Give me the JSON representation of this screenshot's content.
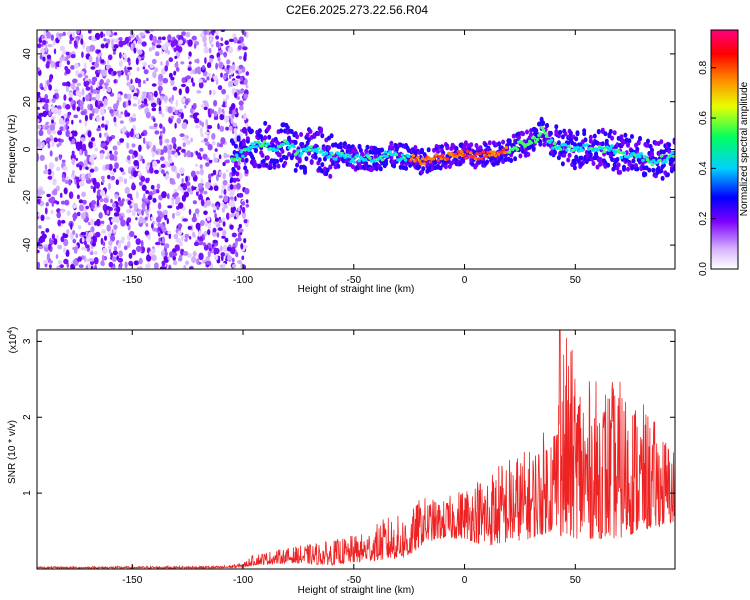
{
  "title": "C2E6.2025.273.22.56.R04",
  "chart_data": [
    {
      "type": "heatmap",
      "id": "spectrogram",
      "xlabel": "Height of straight line (km)",
      "ylabel": "Frequency (Hz)",
      "xlim": [
        -193,
        95
      ],
      "ylim": [
        -50,
        50
      ],
      "xticks": [
        -150,
        -100,
        -50,
        0,
        50
      ],
      "yticks": [
        -40,
        -20,
        0,
        20,
        40
      ],
      "noise_region_x": [
        -193,
        -102
      ],
      "ridge": {
        "x": [
          -105,
          -100,
          -95,
          -90,
          -85,
          -80,
          -75,
          -70,
          -65,
          -60,
          -55,
          -50,
          -45,
          -40,
          -35,
          -30,
          -25,
          -20,
          -15,
          -10,
          -5,
          0,
          5,
          10,
          15,
          20,
          25,
          30,
          33,
          35,
          38,
          40,
          45,
          50,
          55,
          60,
          65,
          70,
          75,
          80,
          85,
          90,
          95
        ],
        "freq": [
          -5,
          -2,
          2,
          2,
          0,
          3,
          -2,
          0,
          0,
          -3,
          -2,
          -4,
          -3,
          -4,
          -2,
          -3,
          -3,
          -5,
          -4,
          -3,
          -2,
          -2,
          -3,
          -2,
          -1,
          0,
          2,
          3,
          5,
          8,
          4,
          2,
          1,
          0,
          1,
          0,
          1,
          -2,
          -2,
          -3,
          -5,
          -4,
          -2
        ]
      },
      "colorbar": {
        "label": "Normalized spectral amplitude",
        "lim": [
          0,
          0.95
        ],
        "ticks": [
          0.0,
          0.2,
          0.4,
          0.6,
          0.8
        ],
        "tick_labels": [
          "0.0",
          "0.2",
          "0.4",
          "0.6",
          "0.8"
        ]
      }
    },
    {
      "type": "line",
      "id": "snr",
      "xlabel": "Height of straight line (km)",
      "ylabel": "SNR (10 * v/v)",
      "multiplier_prefix": "(x10",
      "multiplier_exp": "4",
      "multiplier_suffix": ")",
      "xlim": [
        -193,
        95
      ],
      "ylim": [
        0,
        3.15
      ],
      "xticks": [
        -150,
        -100,
        -50,
        0,
        50
      ],
      "yticks": [
        1,
        2,
        3
      ],
      "color": "#ee2222",
      "envelope": {
        "x": [
          -193,
          -110,
          -100,
          -95,
          -80,
          -60,
          -45,
          -35,
          -25,
          -20,
          -18,
          -10,
          0,
          10,
          20,
          30,
          40,
          45,
          55,
          70,
          80,
          95
        ],
        "low": [
          0.01,
          0.01,
          0.02,
          0.05,
          0.08,
          0.05,
          0.1,
          0.12,
          0.15,
          0.3,
          0.35,
          0.4,
          0.4,
          0.3,
          0.35,
          0.4,
          0.5,
          0.4,
          0.4,
          0.4,
          0.5,
          0.6
        ],
        "high": [
          0.03,
          0.04,
          0.08,
          0.2,
          0.28,
          0.38,
          0.48,
          0.7,
          0.72,
          0.95,
          0.95,
          0.9,
          1.1,
          1.3,
          1.5,
          1.6,
          2.0,
          3.15,
          2.5,
          2.5,
          2.2,
          1.6
        ]
      }
    }
  ]
}
